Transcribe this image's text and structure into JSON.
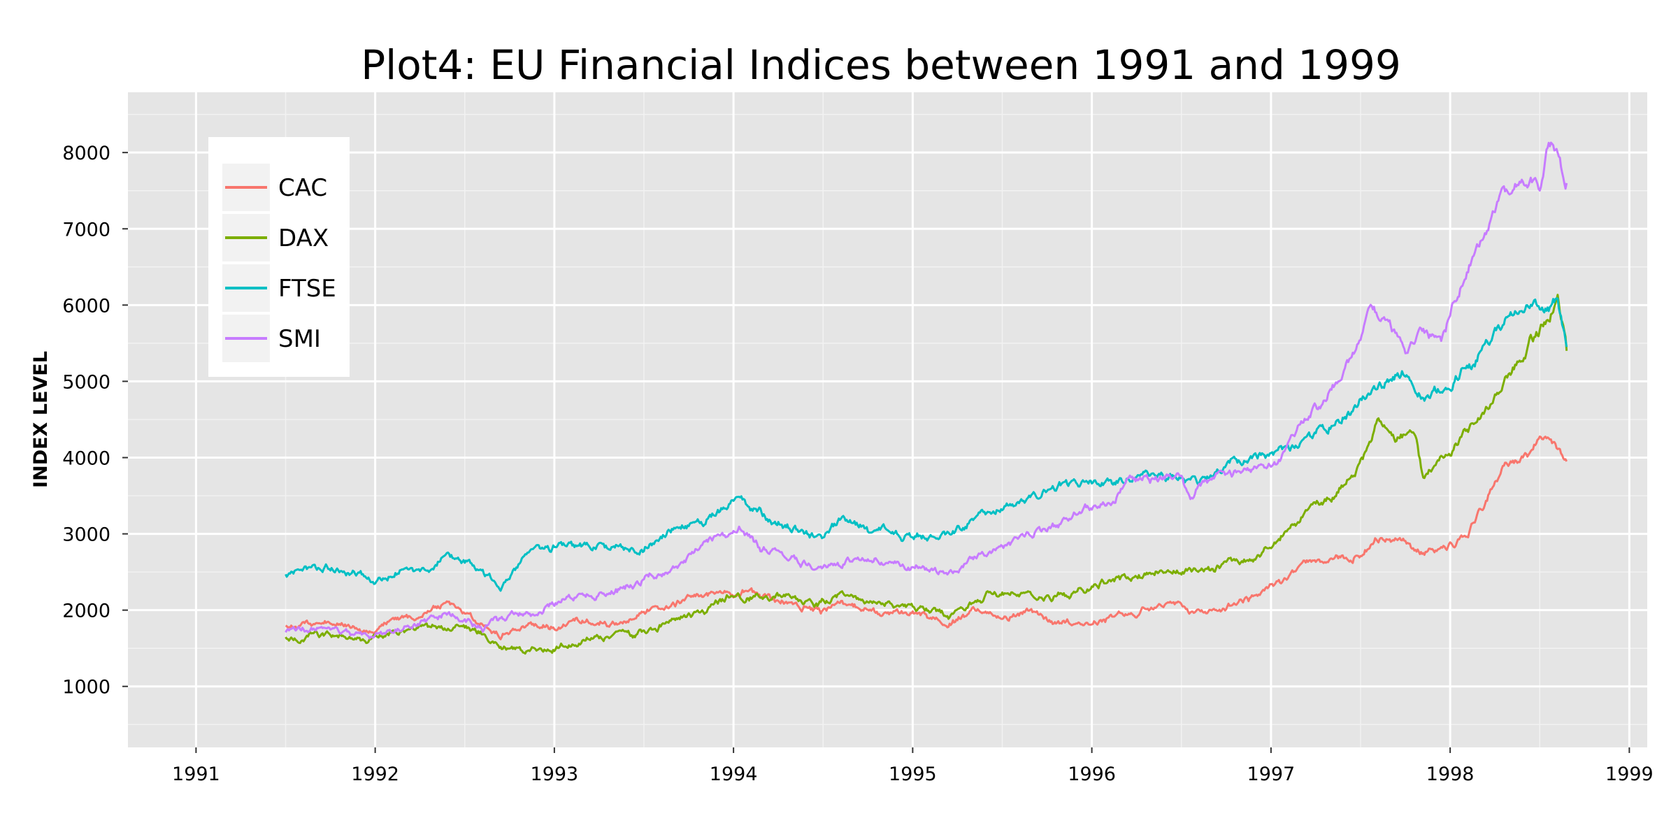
{
  "chart_data": {
    "type": "line",
    "title": "Plot4: EU Financial Indices between 1991 and 1999",
    "xlabel": "",
    "ylabel": "INDEX LEVEL",
    "xlim": [
      1990.62,
      1999.1
    ],
    "ylim": [
      200,
      8790
    ],
    "xticks": [
      1991,
      1992,
      1993,
      1994,
      1995,
      1996,
      1997,
      1998,
      1999
    ],
    "xtick_labels": [
      "1991",
      "1992",
      "1993",
      "1994",
      "1995",
      "1996",
      "1997",
      "1998",
      "1999"
    ],
    "yticks": [
      1000,
      2000,
      3000,
      4000,
      5000,
      6000,
      7000,
      8000
    ],
    "ytick_labels": [
      "1000",
      "2000",
      "3000",
      "4000",
      "5000",
      "6000",
      "7000",
      "8000"
    ],
    "grid": true,
    "legend": "top-left",
    "background": "#e5e5e5",
    "series": [
      {
        "name": "CAC",
        "color": "#f8766d",
        "x": [
          1991.5,
          1991.6,
          1991.75,
          1991.9,
          1992.0,
          1992.15,
          1992.3,
          1992.4,
          1992.55,
          1992.7,
          1992.85,
          1993.0,
          1993.2,
          1993.35,
          1993.5,
          1993.65,
          1993.8,
          1993.95,
          1994.05,
          1994.2,
          1994.35,
          1994.5,
          1994.6,
          1994.75,
          1994.9,
          1995.05,
          1995.2,
          1995.35,
          1995.5,
          1995.65,
          1995.8,
          1996.0,
          1996.2,
          1996.35,
          1996.5,
          1996.6,
          1996.75,
          1996.9,
          1997.05,
          1997.2,
          1997.35,
          1997.5,
          1997.6,
          1997.75,
          1997.85,
          1998.0,
          1998.1,
          1998.2,
          1998.3,
          1998.45,
          1998.55,
          1998.6,
          1998.65
        ],
        "y": [
          1760,
          1820,
          1880,
          1800,
          1700,
          1880,
          1980,
          2050,
          1900,
          1650,
          1780,
          1750,
          1880,
          1850,
          1980,
          2100,
          2200,
          2250,
          2300,
          2150,
          2100,
          1950,
          2050,
          1950,
          1900,
          1900,
          1800,
          2000,
          1900,
          1950,
          1800,
          1850,
          1980,
          2050,
          2100,
          2000,
          2050,
          2150,
          2300,
          2600,
          2650,
          2800,
          2950,
          2900,
          2750,
          2850,
          3000,
          3400,
          3900,
          4100,
          4350,
          4100,
          3950
        ]
      },
      {
        "name": "DAX",
        "color": "#7cae00",
        "x": [
          1991.5,
          1991.65,
          1991.8,
          1991.95,
          1992.1,
          1992.3,
          1992.45,
          1992.6,
          1992.75,
          1992.9,
          1993.05,
          1993.25,
          1993.45,
          1993.6,
          1993.75,
          1993.9,
          1994.0,
          1994.15,
          1994.3,
          1994.45,
          1994.6,
          1994.75,
          1994.9,
          1995.05,
          1995.2,
          1995.35,
          1995.5,
          1995.6,
          1995.7,
          1995.85,
          1996.0,
          1996.2,
          1996.35,
          1996.5,
          1996.6,
          1996.75,
          1996.9,
          1997.05,
          1997.2,
          1997.35,
          1997.5,
          1997.6,
          1997.7,
          1997.8,
          1997.85,
          1997.95,
          1998.05,
          1998.15,
          1998.25,
          1998.35,
          1998.45,
          1998.55,
          1998.6,
          1998.65
        ],
        "y": [
          1620,
          1640,
          1600,
          1580,
          1700,
          1750,
          1800,
          1700,
          1500,
          1500,
          1550,
          1650,
          1700,
          1850,
          1950,
          2100,
          2250,
          2150,
          2200,
          2100,
          2200,
          2100,
          2050,
          2050,
          1950,
          2100,
          2250,
          2200,
          2150,
          2200,
          2300,
          2450,
          2500,
          2550,
          2500,
          2600,
          2700,
          2900,
          3300,
          3500,
          3900,
          4450,
          4150,
          4300,
          3700,
          4000,
          4200,
          4500,
          4800,
          5100,
          5500,
          5800,
          6000,
          5400
        ]
      },
      {
        "name": "FTSE",
        "color": "#00bfc4",
        "x": [
          1991.5,
          1991.6,
          1991.75,
          1991.9,
          1992.0,
          1992.15,
          1992.3,
          1992.4,
          1992.55,
          1992.7,
          1992.85,
          1993.0,
          1993.15,
          1993.3,
          1993.5,
          1993.65,
          1993.8,
          1993.95,
          1994.05,
          1994.2,
          1994.35,
          1994.5,
          1994.6,
          1994.75,
          1994.9,
          1995.05,
          1995.2,
          1995.35,
          1995.5,
          1995.65,
          1995.8,
          1996.0,
          1996.2,
          1996.35,
          1996.5,
          1996.6,
          1996.75,
          1996.9,
          1997.05,
          1997.2,
          1997.35,
          1997.5,
          1997.6,
          1997.75,
          1997.85,
          1998.0,
          1998.15,
          1998.25,
          1998.35,
          1998.45,
          1998.55,
          1998.6,
          1998.65
        ],
        "y": [
          2450,
          2600,
          2600,
          2500,
          2400,
          2550,
          2500,
          2700,
          2550,
          2300,
          2700,
          2800,
          2850,
          2850,
          2850,
          3100,
          3150,
          3350,
          3450,
          3200,
          3100,
          2950,
          3200,
          3050,
          3000,
          3000,
          3050,
          3200,
          3350,
          3450,
          3600,
          3650,
          3750,
          3800,
          3750,
          3700,
          3900,
          4000,
          4050,
          4200,
          4400,
          4700,
          4900,
          5100,
          4800,
          5000,
          5300,
          5600,
          5900,
          6000,
          6000,
          6150,
          5450
        ]
      },
      {
        "name": "SMI",
        "color": "#c77cff",
        "x": [
          1991.5,
          1991.65,
          1991.8,
          1991.95,
          1992.1,
          1992.25,
          1992.4,
          1992.6,
          1992.75,
          1992.9,
          1993.05,
          1993.2,
          1993.35,
          1993.5,
          1993.65,
          1993.8,
          1993.95,
          1994.05,
          1994.15,
          1994.3,
          1994.45,
          1994.6,
          1994.75,
          1994.9,
          1995.05,
          1995.2,
          1995.35,
          1995.5,
          1995.65,
          1995.8,
          1995.95,
          1996.1,
          1996.2,
          1996.35,
          1996.5,
          1996.55,
          1996.65,
          1996.8,
          1996.95,
          1997.05,
          1997.15,
          1997.3,
          1997.45,
          1997.55,
          1997.65,
          1997.75,
          1997.85,
          1997.95,
          1998.05,
          1998.15,
          1998.25,
          1998.35,
          1998.45,
          1998.5,
          1998.55,
          1998.6,
          1998.65
        ],
        "y": [
          1700,
          1750,
          1700,
          1650,
          1750,
          1850,
          1950,
          1750,
          1900,
          1950,
          2100,
          2150,
          2250,
          2400,
          2500,
          2800,
          3000,
          3100,
          2800,
          2700,
          2600,
          2550,
          2650,
          2550,
          2600,
          2500,
          2700,
          2850,
          3000,
          3100,
          3300,
          3400,
          3700,
          3700,
          3750,
          3500,
          3700,
          3800,
          3900,
          4000,
          4400,
          4800,
          5300,
          5900,
          5700,
          5300,
          5700,
          5500,
          6100,
          6700,
          7300,
          7500,
          7600,
          7500,
          8200,
          8100,
          7600
        ]
      }
    ]
  }
}
